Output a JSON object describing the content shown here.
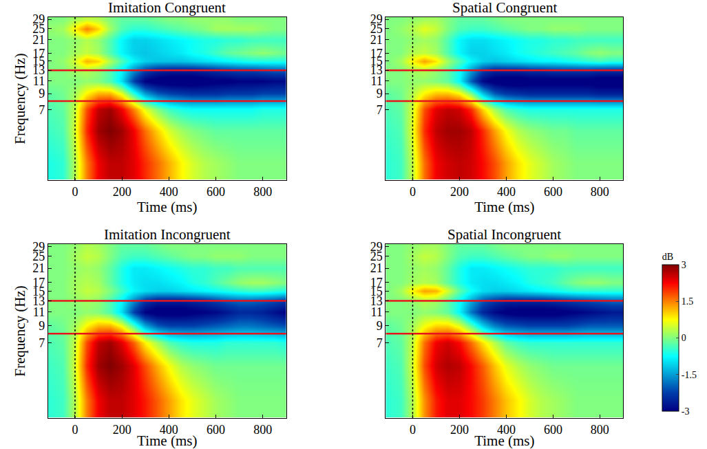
{
  "chart_data": [
    {
      "type": "heatmap",
      "title": "Imitation Congruent",
      "xlabel": "Time (ms)",
      "ylabel": "Frequency (Hz)",
      "log": "y",
      "grid": false,
      "color": "Jet",
      "xlim": [
        -115,
        900
      ],
      "ylim": [
        2.3,
        30
      ],
      "xticks": [
        0,
        200,
        400,
        600,
        800
      ],
      "yticks": [
        7,
        9,
        11,
        13,
        15,
        17,
        21,
        25,
        29
      ],
      "band_lines": [
        8,
        13
      ],
      "onset_line": 0,
      "x": [
        -100,
        -50,
        0,
        50,
        100,
        150,
        200,
        250,
        300,
        350,
        400,
        450,
        500,
        550,
        600,
        650,
        700,
        750,
        800,
        850,
        900
      ],
      "y": [
        3,
        5,
        7,
        9,
        11,
        13,
        15,
        17,
        21,
        25,
        29
      ],
      "z": [
        [
          -0.6,
          -0.5,
          0.3,
          1.5,
          2.3,
          2.6,
          2.6,
          2.4,
          2.0,
          1.6,
          1.2,
          0.8,
          0.5,
          0.3,
          0.2,
          0.1,
          0,
          0,
          0,
          0,
          0
        ],
        [
          -0.4,
          -0.3,
          0.5,
          2.0,
          2.8,
          3.0,
          2.8,
          2.3,
          1.6,
          1.0,
          0.5,
          0.2,
          0,
          -0.1,
          -0.2,
          -0.2,
          -0.2,
          -0.2,
          -0.2,
          -0.2,
          -0.2
        ],
        [
          -0.3,
          -0.2,
          0.4,
          1.8,
          2.6,
          2.8,
          2.3,
          1.5,
          0.6,
          0,
          -0.4,
          -0.6,
          -0.7,
          -0.7,
          -0.7,
          -0.7,
          -0.7,
          -0.7,
          -0.6,
          -0.6,
          -0.6
        ],
        [
          -0.2,
          -0.1,
          0.2,
          0.8,
          1.2,
          1.2,
          0.6,
          -0.5,
          -1.5,
          -2.0,
          -2.2,
          -2.3,
          -2.4,
          -2.4,
          -2.4,
          -2.3,
          -2.3,
          -2.3,
          -2.2,
          -2.2,
          -2.2
        ],
        [
          0,
          0,
          0,
          0.1,
          0,
          -0.3,
          -1.0,
          -2.2,
          -3.0,
          -3.2,
          -3.3,
          -3.3,
          -3.3,
          -3.2,
          -3.1,
          -3.1,
          -3.0,
          -3.0,
          -3.0,
          -2.9,
          -2.9
        ],
        [
          0,
          0,
          0.2,
          0.3,
          0.1,
          -0.3,
          -0.8,
          -1.6,
          -2.2,
          -2.5,
          -2.6,
          -2.6,
          -2.6,
          -2.5,
          -2.4,
          -2.3,
          -2.2,
          -2.2,
          -2.1,
          -2.0,
          -2.0
        ],
        [
          0,
          0.1,
          0.5,
          1.2,
          1.0,
          0.3,
          -0.3,
          -0.8,
          -1.1,
          -1.2,
          -1.2,
          -1.2,
          -1.1,
          -1.0,
          -0.9,
          -0.8,
          -0.7,
          -0.6,
          -0.6,
          -0.6,
          -0.6
        ],
        [
          0,
          0,
          0.2,
          0.4,
          0.2,
          -0.3,
          -0.8,
          -1.1,
          -1.2,
          -1.1,
          -1.0,
          -0.9,
          -0.7,
          -0.6,
          -0.4,
          -0.2,
          -0.1,
          0,
          0.1,
          0,
          -0.1
        ],
        [
          0,
          0,
          0.1,
          0.3,
          0.1,
          -0.3,
          -0.8,
          -1.1,
          -1.1,
          -1.0,
          -0.9,
          -0.8,
          -0.7,
          -0.6,
          -0.6,
          -0.5,
          -0.5,
          -0.4,
          -0.4,
          -0.4,
          -0.4
        ],
        [
          0.1,
          0.2,
          0.8,
          1.5,
          1.0,
          0.2,
          -0.3,
          -0.5,
          -0.5,
          -0.4,
          -0.3,
          -0.2,
          -0.1,
          0,
          0.2,
          0.2,
          0.2,
          0.2,
          0.1,
          0,
          0
        ],
        [
          0,
          0,
          0.2,
          0.4,
          0.3,
          0,
          -0.2,
          -0.2,
          -0.2,
          -0.1,
          0,
          0,
          0.1,
          0.1,
          0.1,
          0.1,
          0,
          0,
          0,
          0,
          0
        ]
      ]
    },
    {
      "type": "heatmap",
      "title": "Spatial Congruent",
      "xlabel": "Time (ms)",
      "log": "y",
      "grid": false,
      "color": "Jet",
      "xlim": [
        -115,
        900
      ],
      "ylim": [
        2.3,
        30
      ],
      "xticks": [
        0,
        200,
        400,
        600,
        800
      ],
      "yticks": [
        7,
        9,
        11,
        13,
        15,
        17,
        21,
        25,
        29
      ],
      "band_lines": [
        8,
        13
      ],
      "onset_line": 0,
      "x": [
        -100,
        -50,
        0,
        50,
        100,
        150,
        200,
        250,
        300,
        350,
        400,
        450,
        500,
        550,
        600,
        650,
        700,
        750,
        800,
        850,
        900
      ],
      "y": [
        3,
        5,
        7,
        9,
        11,
        13,
        15,
        17,
        21,
        25,
        29
      ],
      "z": [
        [
          -0.5,
          -0.4,
          0.4,
          1.6,
          2.3,
          2.5,
          2.6,
          2.5,
          2.2,
          1.8,
          1.3,
          0.9,
          0.6,
          0.4,
          0.2,
          0.1,
          0,
          0,
          0,
          0,
          0
        ],
        [
          -0.4,
          -0.3,
          0.6,
          2.0,
          2.6,
          2.8,
          2.8,
          2.6,
          2.0,
          1.3,
          0.7,
          0.3,
          0.1,
          0,
          -0.1,
          -0.1,
          -0.2,
          -0.2,
          -0.2,
          -0.2,
          -0.2
        ],
        [
          -0.3,
          -0.2,
          0.5,
          1.8,
          2.4,
          2.6,
          2.5,
          2.0,
          1.0,
          0.2,
          -0.3,
          -0.5,
          -0.6,
          -0.6,
          -0.6,
          -0.6,
          -0.6,
          -0.6,
          -0.6,
          -0.6,
          -0.6
        ],
        [
          -0.2,
          -0.1,
          0.3,
          0.8,
          1.1,
          1.1,
          0.8,
          0,
          -1.2,
          -2.0,
          -2.3,
          -2.4,
          -2.5,
          -2.5,
          -2.5,
          -2.5,
          -2.5,
          -2.5,
          -2.6,
          -2.6,
          -2.6
        ],
        [
          0,
          0,
          0.1,
          0.1,
          0,
          -0.2,
          -0.8,
          -2.0,
          -2.9,
          -3.2,
          -3.3,
          -3.3,
          -3.2,
          -3.2,
          -3.2,
          -3.2,
          -3.2,
          -3.2,
          -3.3,
          -3.3,
          -3.3
        ],
        [
          0,
          0,
          0.2,
          0.3,
          0.1,
          -0.2,
          -0.7,
          -1.5,
          -2.2,
          -2.5,
          -2.5,
          -2.5,
          -2.4,
          -2.4,
          -2.3,
          -2.3,
          -2.3,
          -2.3,
          -2.4,
          -2.4,
          -2.4
        ],
        [
          0,
          0.2,
          0.8,
          1.3,
          0.9,
          0.2,
          -0.3,
          -0.8,
          -1.1,
          -1.2,
          -1.1,
          -1.0,
          -0.9,
          -0.8,
          -0.8,
          -0.7,
          -0.6,
          -0.5,
          -0.4,
          -0.5,
          -0.5
        ],
        [
          0,
          0,
          0.3,
          0.4,
          0.2,
          -0.3,
          -0.8,
          -1.1,
          -1.1,
          -1.0,
          -0.9,
          -0.7,
          -0.6,
          -0.5,
          -0.4,
          -0.3,
          -0.2,
          0,
          0.1,
          0,
          0
        ],
        [
          0,
          0,
          0.1,
          0.2,
          0.1,
          -0.3,
          -0.8,
          -1.0,
          -1.0,
          -0.9,
          -0.8,
          -0.7,
          -0.6,
          -0.6,
          -0.5,
          -0.5,
          -0.4,
          -0.4,
          -0.4,
          -0.4,
          -0.4
        ],
        [
          0,
          0.1,
          0.3,
          0.6,
          0.4,
          0,
          -0.3,
          -0.4,
          -0.4,
          -0.3,
          -0.2,
          -0.1,
          0,
          0,
          0.1,
          0.1,
          0.1,
          0,
          0,
          0,
          0
        ],
        [
          0,
          0,
          0.1,
          0.2,
          0.2,
          0,
          -0.2,
          -0.2,
          -0.2,
          -0.1,
          0,
          0,
          0,
          0,
          0,
          0,
          0,
          0,
          0,
          0,
          0
        ]
      ]
    },
    {
      "type": "heatmap",
      "title": "Imitation Incongruent",
      "xlabel": "Time (ms)",
      "ylabel": "Frequency (Hz)",
      "log": "y",
      "grid": false,
      "color": "Jet",
      "xlim": [
        -115,
        900
      ],
      "ylim": [
        2.3,
        30
      ],
      "xticks": [
        0,
        200,
        400,
        600,
        800
      ],
      "yticks": [
        7,
        9,
        11,
        13,
        15,
        17,
        21,
        25,
        29
      ],
      "band_lines": [
        8,
        13
      ],
      "onset_line": 0,
      "x": [
        -100,
        -50,
        0,
        50,
        100,
        150,
        200,
        250,
        300,
        350,
        400,
        450,
        500,
        550,
        600,
        650,
        700,
        750,
        800,
        850,
        900
      ],
      "y": [
        3,
        5,
        7,
        9,
        11,
        13,
        15,
        17,
        21,
        25,
        29
      ],
      "z": [
        [
          -0.5,
          -0.4,
          0.3,
          1.5,
          2.3,
          2.6,
          2.6,
          2.4,
          2.1,
          1.7,
          1.3,
          0.9,
          0.6,
          0.4,
          0.2,
          0.1,
          0,
          0,
          0,
          0,
          0
        ],
        [
          -0.4,
          -0.3,
          0.5,
          2.0,
          2.8,
          3.0,
          2.8,
          2.4,
          1.8,
          1.2,
          0.7,
          0.3,
          0.1,
          0,
          -0.1,
          -0.1,
          -0.1,
          -0.1,
          -0.1,
          -0.1,
          -0.1
        ],
        [
          -0.3,
          -0.2,
          0.4,
          1.8,
          2.6,
          2.8,
          2.4,
          1.7,
          0.8,
          0.2,
          -0.3,
          -0.5,
          -0.6,
          -0.6,
          -0.6,
          -0.5,
          -0.5,
          -0.5,
          -0.5,
          -0.5,
          -0.6
        ],
        [
          -0.2,
          -0.1,
          0.2,
          0.8,
          1.2,
          1.2,
          0.7,
          -0.3,
          -1.4,
          -2.0,
          -2.2,
          -2.2,
          -2.2,
          -2.1,
          -2.0,
          -1.9,
          -1.8,
          -1.8,
          -1.9,
          -2.0,
          -2.1
        ],
        [
          0,
          0,
          0,
          0.1,
          0,
          -0.3,
          -1.0,
          -2.2,
          -3.0,
          -3.2,
          -3.2,
          -3.2,
          -3.1,
          -3.0,
          -2.9,
          -2.7,
          -2.5,
          -2.5,
          -2.6,
          -2.8,
          -3.0
        ],
        [
          0,
          0,
          0.1,
          0.2,
          0.1,
          -0.3,
          -0.8,
          -1.6,
          -2.3,
          -2.6,
          -2.6,
          -2.6,
          -2.5,
          -2.4,
          -2.2,
          -2.0,
          -1.9,
          -1.9,
          -2.0,
          -2.1,
          -2.3
        ],
        [
          0,
          0,
          0.2,
          0.4,
          0.3,
          0,
          -0.4,
          -0.8,
          -1.0,
          -1.1,
          -1.1,
          -1.0,
          -0.9,
          -0.8,
          -0.7,
          -0.6,
          -0.5,
          -0.4,
          -0.4,
          -0.5,
          -0.6
        ],
        [
          0,
          0,
          0.2,
          0.3,
          0.2,
          -0.2,
          -0.6,
          -0.9,
          -1.0,
          -1.0,
          -0.9,
          -0.8,
          -0.6,
          -0.5,
          -0.3,
          -0.1,
          0.1,
          0.2,
          0.2,
          0.1,
          0
        ],
        [
          0,
          0,
          0.1,
          0.2,
          0.1,
          -0.2,
          -0.6,
          -0.9,
          -0.9,
          -0.8,
          -0.7,
          -0.6,
          -0.5,
          -0.5,
          -0.4,
          -0.4,
          -0.3,
          -0.3,
          -0.3,
          -0.3,
          -0.3
        ],
        [
          0,
          0,
          0.2,
          0.4,
          0.3,
          0,
          -0.3,
          -0.4,
          -0.4,
          -0.3,
          -0.2,
          -0.1,
          0,
          0,
          0.1,
          0.1,
          0.1,
          0,
          0,
          0,
          0
        ],
        [
          0,
          0,
          0.1,
          0.3,
          0.2,
          0,
          -0.2,
          -0.2,
          -0.2,
          -0.1,
          0,
          0,
          0,
          0,
          0,
          0,
          0,
          0,
          0,
          0,
          0
        ]
      ]
    },
    {
      "type": "heatmap",
      "title": "Spatial Incongruent",
      "xlabel": "Time (ms)",
      "log": "y",
      "grid": false,
      "color": "Jet",
      "xlim": [
        -115,
        900
      ],
      "ylim": [
        2.3,
        30
      ],
      "xticks": [
        0,
        200,
        400,
        600,
        800
      ],
      "yticks": [
        7,
        9,
        11,
        13,
        15,
        17,
        21,
        25,
        29
      ],
      "band_lines": [
        8,
        13
      ],
      "onset_line": 0,
      "colorbar": {
        "title": "dB",
        "range": [
          -3,
          3
        ],
        "ticks": [
          -3,
          -1.5,
          0,
          1.5,
          3
        ]
      },
      "x": [
        -100,
        -50,
        0,
        50,
        100,
        150,
        200,
        250,
        300,
        350,
        400,
        450,
        500,
        550,
        600,
        650,
        700,
        750,
        800,
        850,
        900
      ],
      "y": [
        3,
        5,
        7,
        9,
        11,
        13,
        15,
        17,
        21,
        25,
        29
      ],
      "z": [
        [
          -0.5,
          -0.4,
          0.3,
          1.4,
          2.1,
          2.4,
          2.4,
          2.2,
          1.9,
          1.5,
          1.1,
          0.8,
          0.5,
          0.3,
          0.2,
          0.1,
          0,
          0,
          0,
          0,
          0
        ],
        [
          -0.4,
          -0.3,
          0.5,
          1.8,
          2.5,
          2.7,
          2.6,
          2.2,
          1.7,
          1.1,
          0.6,
          0.3,
          0.1,
          0,
          -0.1,
          -0.1,
          -0.1,
          -0.1,
          -0.1,
          -0.1,
          -0.1
        ],
        [
          -0.3,
          -0.2,
          0.4,
          1.6,
          2.3,
          2.5,
          2.2,
          1.6,
          0.9,
          0.3,
          -0.2,
          -0.4,
          -0.5,
          -0.5,
          -0.5,
          -0.5,
          -0.5,
          -0.5,
          -0.5,
          -0.5,
          -0.5
        ],
        [
          -0.2,
          -0.1,
          0.2,
          0.7,
          1.0,
          1.0,
          0.6,
          -0.2,
          -1.1,
          -1.7,
          -2.0,
          -2.1,
          -2.2,
          -2.2,
          -2.2,
          -2.2,
          -2.1,
          -2.0,
          -2.0,
          -2.0,
          -2.0
        ],
        [
          0,
          0,
          0,
          0.1,
          0,
          -0.2,
          -0.8,
          -1.8,
          -2.5,
          -2.9,
          -3.1,
          -3.2,
          -3.2,
          -3.2,
          -3.2,
          -3.1,
          -3.0,
          -2.9,
          -2.8,
          -2.7,
          -2.7
        ],
        [
          0,
          0,
          0.1,
          0.3,
          0.2,
          -0.2,
          -0.7,
          -1.4,
          -2.0,
          -2.3,
          -2.5,
          -2.5,
          -2.5,
          -2.5,
          -2.4,
          -2.3,
          -2.2,
          -2.1,
          -2.0,
          -1.9,
          -1.9
        ],
        [
          0,
          0.2,
          0.8,
          1.3,
          1.2,
          0.5,
          -0.2,
          -0.7,
          -1.0,
          -1.1,
          -1.1,
          -1.0,
          -0.9,
          -0.8,
          -0.7,
          -0.6,
          -0.5,
          -0.5,
          -0.5,
          -0.5,
          -0.5
        ],
        [
          0,
          0,
          0.2,
          0.3,
          0.2,
          -0.2,
          -0.6,
          -0.9,
          -1.0,
          -1.0,
          -0.9,
          -0.8,
          -0.6,
          -0.5,
          -0.4,
          -0.2,
          0,
          0.1,
          0.1,
          0,
          0
        ],
        [
          0,
          0,
          0.1,
          0.2,
          0.1,
          -0.2,
          -0.6,
          -0.9,
          -0.9,
          -0.8,
          -0.7,
          -0.6,
          -0.5,
          -0.5,
          -0.5,
          -0.4,
          -0.4,
          -0.4,
          -0.4,
          -0.4,
          -0.4
        ],
        [
          0,
          0,
          0.2,
          0.4,
          0.3,
          0,
          -0.3,
          -0.4,
          -0.4,
          -0.3,
          -0.2,
          -0.1,
          0,
          0,
          0.1,
          0.1,
          0,
          0,
          0,
          0,
          0
        ],
        [
          0,
          0,
          0.1,
          0.2,
          0.2,
          0,
          -0.2,
          -0.2,
          -0.2,
          -0.1,
          0,
          0,
          0,
          0,
          0,
          0,
          0,
          0,
          0,
          0,
          0
        ]
      ]
    }
  ]
}
